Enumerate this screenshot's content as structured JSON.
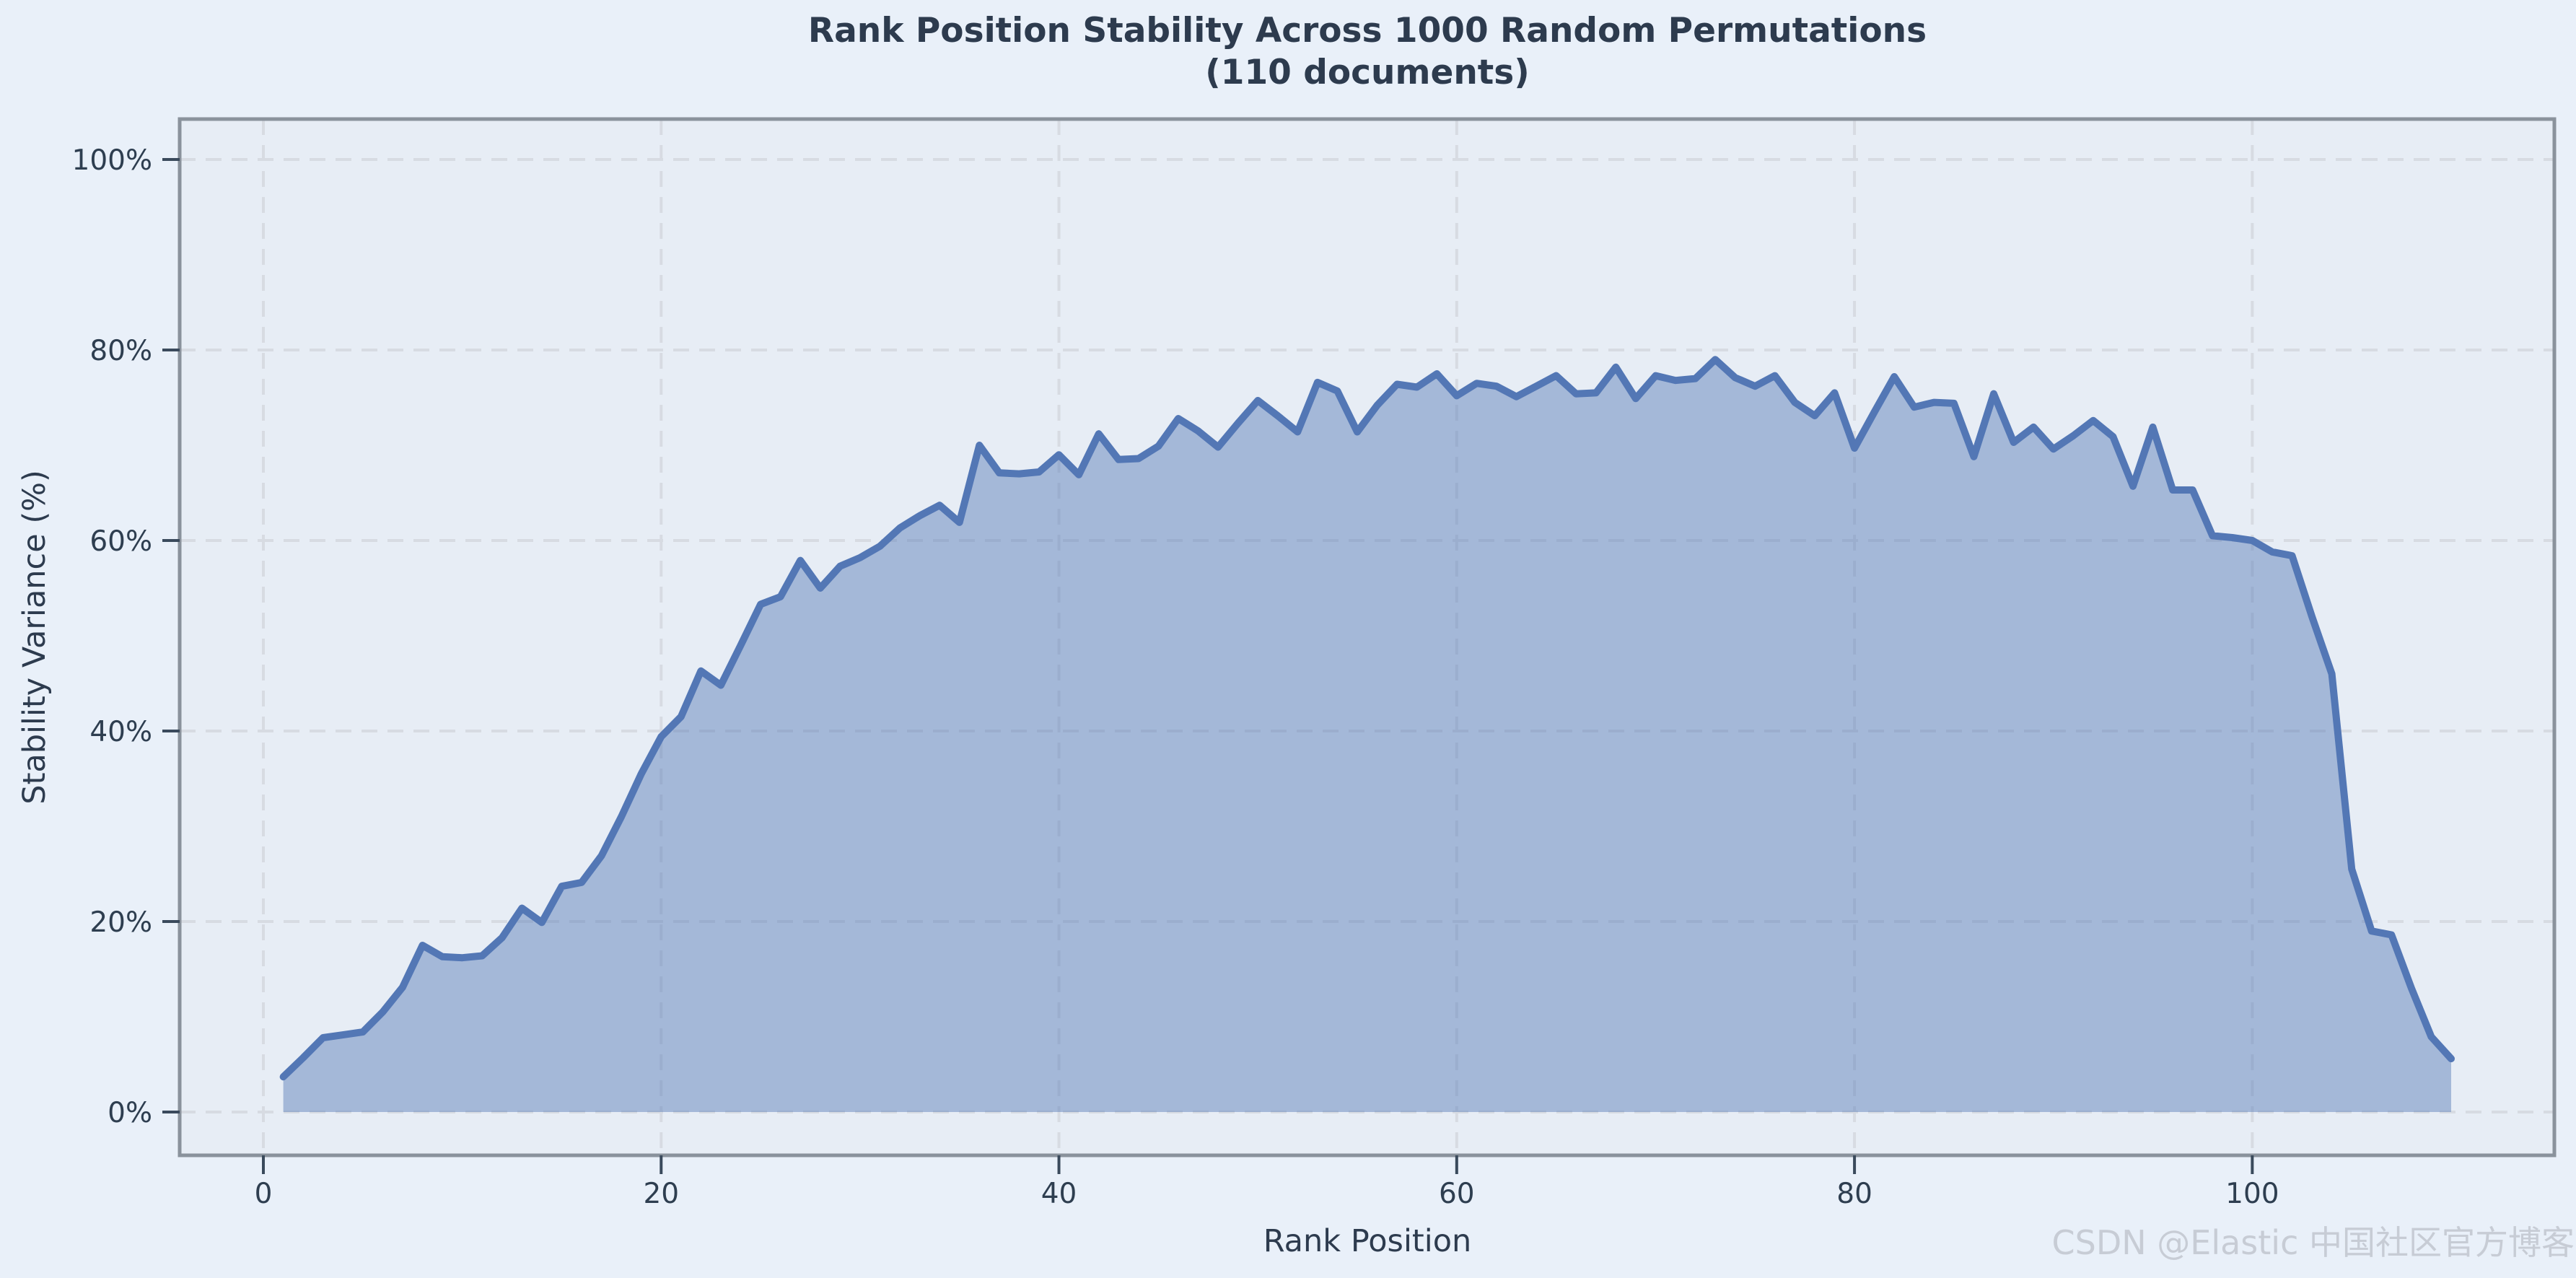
{
  "chart_data": {
    "type": "area",
    "title_line1": "Rank Position Stability Across 1000 Random Permutations",
    "title_line2": "(110 documents)",
    "xlabel": "Rank Position",
    "ylabel": "Stability Variance (%)",
    "x_ticks": [
      0,
      20,
      40,
      60,
      80,
      100
    ],
    "y_ticks": [
      0,
      20,
      40,
      60,
      80,
      100
    ],
    "y_tick_suffix": "%",
    "ylim": [
      0,
      100
    ],
    "grid": true,
    "legend": "none",
    "watermark": "CSDN @Elastic 中国社区官方博客",
    "series": [
      {
        "name": "stability_variance_pct",
        "x_start": 1,
        "x_step": 1,
        "values": [
          3.7,
          5.7,
          7.8,
          8.1,
          8.4,
          10.5,
          13.1,
          17.5,
          16.3,
          16.2,
          16.4,
          18.3,
          21.4,
          19.9,
          23.7,
          24.1,
          26.9,
          31.0,
          35.5,
          39.4,
          41.5,
          46.3,
          44.8,
          49.0,
          53.3,
          54.1,
          57.9,
          55.0,
          57.3,
          58.2,
          59.4,
          61.3,
          62.6,
          63.7,
          61.9,
          70.0,
          67.1,
          67.0,
          67.2,
          69.0,
          66.9,
          71.2,
          68.5,
          68.6,
          69.9,
          72.8,
          71.5,
          69.8,
          72.3,
          74.7,
          73.1,
          71.4,
          76.6,
          75.7,
          71.4,
          74.2,
          76.4,
          76.1,
          77.5,
          75.2,
          76.5,
          76.2,
          75.1,
          76.2,
          77.3,
          75.4,
          75.5,
          78.2,
          74.9,
          77.3,
          76.8,
          77.0,
          79.0,
          77.1,
          76.2,
          77.3,
          74.5,
          73.1,
          75.5,
          69.7,
          73.5,
          77.2,
          74.0,
          74.5,
          74.4,
          68.8,
          75.4,
          70.3,
          71.9,
          69.6,
          71.0,
          72.6,
          70.9,
          65.7,
          71.9,
          65.3,
          65.3,
          60.5,
          60.3,
          60.0,
          58.8,
          58.4,
          52.0,
          46.0,
          25.5,
          19.0,
          18.6,
          13.0,
          7.9,
          5.6
        ]
      }
    ],
    "colors": {
      "line": "#5377b5",
      "fill": "rgba(83,119,181,0.45)",
      "grid": "#d7dbe2",
      "figure_background": "#e9f0f9",
      "plot_background": "#e7edf5",
      "spine": "#8a929c",
      "tick_mark": "#3a4a5c",
      "text": "#2d3b4e",
      "watermark": "#c7ccd5"
    }
  }
}
